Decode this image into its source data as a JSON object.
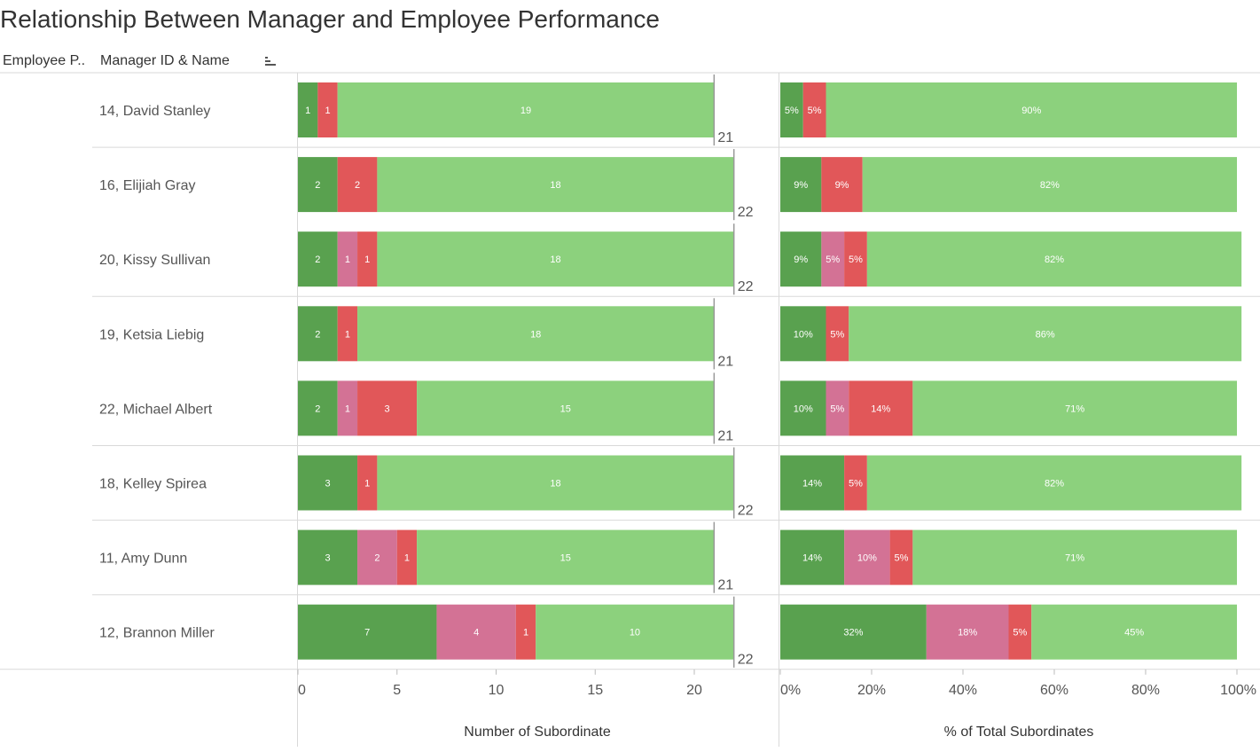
{
  "title": "Relationship Between Manager and Employee Performance",
  "column_headers": {
    "employee_performance": "Employee P..",
    "manager": "Manager ID & Name"
  },
  "colors": {
    "fully_meets": "#59a14f",
    "exceeds": "#d37295",
    "needs_improvement": "#e15759",
    "other": "#8cd17d",
    "gridline": "#d9d9d9",
    "text": "#555555"
  },
  "chart_data": [
    {
      "type": "bar",
      "orientation": "horizontal",
      "stacked": true,
      "xlabel": "Number of Subordinate",
      "xlim": [
        0,
        23.5
      ],
      "xticks": [
        "0",
        "5",
        "10",
        "15",
        "20"
      ],
      "categories": [
        "14, David Stanley",
        "16, Elijiah Gray",
        "20, Kissy Sullivan",
        "19, Ketsia Liebig",
        "22, Michael Albert",
        "18, Kelley Spirea",
        "11, Amy Dunn",
        "12, Brannon Miller"
      ],
      "series": [
        {
          "values": [
            1,
            2,
            2,
            2,
            2,
            3,
            3,
            7
          ]
        },
        {
          "values": [
            0,
            0,
            1,
            0,
            1,
            0,
            2,
            4
          ]
        },
        {
          "values": [
            1,
            2,
            1,
            1,
            3,
            1,
            1,
            1
          ]
        },
        {
          "values": [
            19,
            18,
            18,
            18,
            15,
            18,
            15,
            10
          ]
        }
      ],
      "totals": [
        21,
        22,
        22,
        21,
        21,
        22,
        21,
        22
      ]
    },
    {
      "type": "bar",
      "orientation": "horizontal",
      "stacked": true,
      "xlabel": "% of Total Subordinates",
      "xlim": [
        0,
        100
      ],
      "xticks": [
        "0%",
        "20%",
        "40%",
        "60%",
        "80%",
        "100%"
      ],
      "categories": [
        "14, David Stanley",
        "16, Elijiah Gray",
        "20, Kissy Sullivan",
        "19, Ketsia Liebig",
        "22, Michael Albert",
        "18, Kelley Spirea",
        "11, Amy Dunn",
        "12, Brannon Miller"
      ],
      "series": [
        {
          "values": [
            5,
            9,
            9,
            10,
            10,
            14,
            14,
            32
          ]
        },
        {
          "values": [
            0,
            0,
            5,
            0,
            5,
            0,
            10,
            18
          ]
        },
        {
          "values": [
            5,
            9,
            5,
            5,
            14,
            5,
            5,
            5
          ]
        },
        {
          "values": [
            90,
            82,
            82,
            86,
            71,
            82,
            71,
            45
          ]
        }
      ]
    }
  ]
}
